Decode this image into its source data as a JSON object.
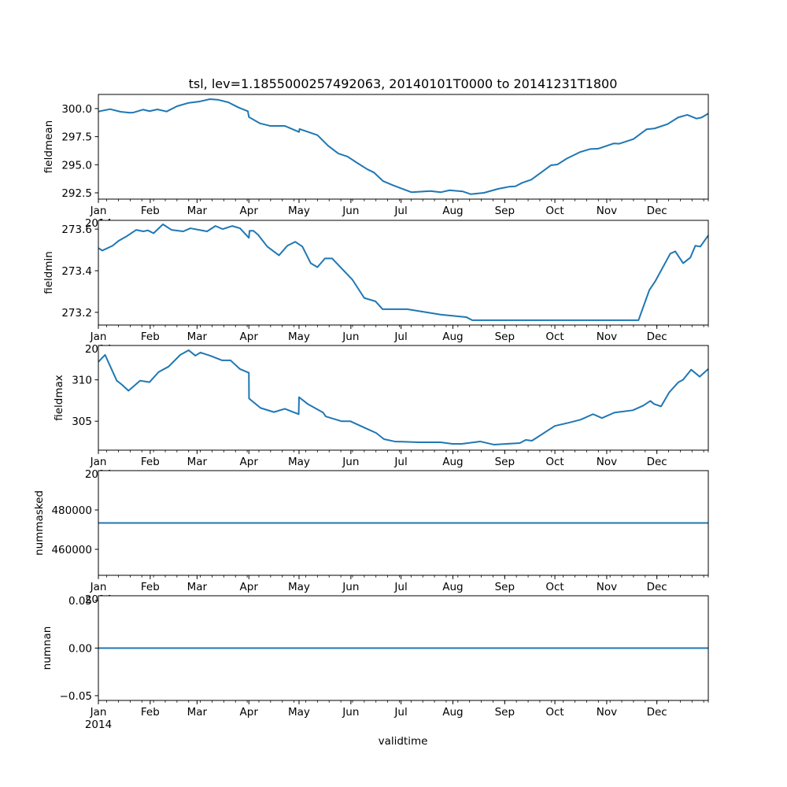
{
  "chart_data": {
    "type": "line",
    "title": "tsl, lev=1.1855000257492063, 20140101T0000 to 20141231T1800",
    "xlabel": "validtime",
    "x_units": "day of year 2014 (0 = Jan 1)",
    "xlim": [
      0,
      364.75
    ],
    "x_tick_days": [
      0,
      31,
      59,
      90,
      120,
      151,
      181,
      212,
      243,
      273,
      304,
      334
    ],
    "x_tick_labels": [
      "Jan",
      "Feb",
      "Mar",
      "Apr",
      "May",
      "Jun",
      "Jul",
      "Aug",
      "Sep",
      "Oct",
      "Nov",
      "Dec"
    ],
    "x_year_label": "2014",
    "line_color": "#1f77b4",
    "panels": [
      {
        "ylabel": "fieldmean",
        "ylim": [
          291.94,
          301.26
        ],
        "yticks": [
          292.5,
          295.0,
          297.5,
          300.0
        ],
        "ytick_labels": [
          "292.5",
          "295.0",
          "297.5",
          "300.0"
        ],
        "points": [
          [
            0,
            299.74
          ],
          [
            7,
            299.95
          ],
          [
            13.3,
            299.72
          ],
          [
            18.8,
            299.63
          ],
          [
            21,
            299.65
          ],
          [
            26.7,
            299.91
          ],
          [
            30.6,
            299.77
          ],
          [
            35.3,
            299.93
          ],
          [
            40.8,
            299.74
          ],
          [
            47,
            300.21
          ],
          [
            54,
            300.51
          ],
          [
            60.4,
            300.63
          ],
          [
            66.7,
            300.84
          ],
          [
            71.4,
            300.79
          ],
          [
            77.7,
            300.56
          ],
          [
            83.9,
            300.09
          ],
          [
            89.4,
            299.77
          ],
          [
            90,
            299.25
          ],
          [
            96.5,
            298.69
          ],
          [
            102.7,
            298.46
          ],
          [
            111.4,
            298.46
          ],
          [
            120,
            297.92
          ],
          [
            120.3,
            298.18
          ],
          [
            131,
            297.64
          ],
          [
            137.3,
            296.7
          ],
          [
            143.5,
            296.0
          ],
          [
            149,
            295.73
          ],
          [
            154.5,
            295.19
          ],
          [
            160.8,
            294.6
          ],
          [
            164.7,
            294.32
          ],
          [
            170.2,
            293.55
          ],
          [
            176.5,
            293.15
          ],
          [
            187.3,
            292.55
          ],
          [
            198.5,
            292.66
          ],
          [
            204.7,
            292.55
          ],
          [
            210,
            292.73
          ],
          [
            218,
            292.62
          ],
          [
            222.6,
            292.38
          ],
          [
            230.6,
            292.5
          ],
          [
            239,
            292.85
          ],
          [
            245.5,
            293.04
          ],
          [
            249.4,
            293.08
          ],
          [
            253.4,
            293.39
          ],
          [
            258.9,
            293.67
          ],
          [
            270.6,
            294.95
          ],
          [
            274.5,
            295.02
          ],
          [
            280,
            295.54
          ],
          [
            287.9,
            296.12
          ],
          [
            294.2,
            296.4
          ],
          [
            298.9,
            296.43
          ],
          [
            308.3,
            296.9
          ],
          [
            311.4,
            296.87
          ],
          [
            320,
            297.29
          ],
          [
            327.9,
            298.16
          ],
          [
            332.6,
            298.23
          ],
          [
            340.4,
            298.62
          ],
          [
            346.7,
            299.21
          ],
          [
            352.2,
            299.44
          ],
          [
            357.7,
            299.11
          ],
          [
            360.8,
            299.21
          ],
          [
            364.75,
            299.56
          ]
        ]
      },
      {
        "ylabel": "fieldmin",
        "ylim": [
          273.139,
          273.642
        ],
        "yticks": [
          273.2,
          273.4,
          273.6
        ],
        "ytick_labels": [
          "273.2",
          "273.4",
          "273.6"
        ],
        "points": [
          [
            0,
            273.509
          ],
          [
            2.4,
            273.497
          ],
          [
            8.5,
            273.52
          ],
          [
            12,
            273.543
          ],
          [
            17,
            273.566
          ],
          [
            22.6,
            273.596
          ],
          [
            27,
            273.589
          ],
          [
            29.6,
            273.594
          ],
          [
            33,
            273.58
          ],
          [
            38.6,
            273.623
          ],
          [
            43.8,
            273.596
          ],
          [
            50.8,
            273.589
          ],
          [
            55,
            273.604
          ],
          [
            65,
            273.589
          ],
          [
            70,
            273.615
          ],
          [
            74.4,
            273.6
          ],
          [
            80,
            273.615
          ],
          [
            84.7,
            273.604
          ],
          [
            90,
            273.558
          ],
          [
            90.4,
            273.592
          ],
          [
            92.7,
            273.592
          ],
          [
            95.5,
            273.573
          ],
          [
            101,
            273.516
          ],
          [
            108,
            273.474
          ],
          [
            113,
            273.52
          ],
          [
            117.7,
            273.539
          ],
          [
            122,
            273.516
          ],
          [
            127,
            273.436
          ],
          [
            131,
            273.417
          ],
          [
            135.5,
            273.459
          ],
          [
            139.8,
            273.459
          ],
          [
            152,
            273.356
          ],
          [
            159,
            273.269
          ],
          [
            165.7,
            273.253
          ],
          [
            170,
            273.215
          ],
          [
            184.7,
            273.215
          ],
          [
            204.7,
            273.189
          ],
          [
            220,
            273.177
          ],
          [
            223.6,
            273.162
          ],
          [
            323,
            273.162
          ],
          [
            329.5,
            273.307
          ],
          [
            333,
            273.349
          ],
          [
            342,
            273.482
          ],
          [
            345,
            273.493
          ],
          [
            349.7,
            273.436
          ],
          [
            354,
            273.463
          ],
          [
            357,
            273.52
          ],
          [
            360,
            273.516
          ],
          [
            364.75,
            273.57
          ]
        ]
      },
      {
        "ylabel": "fieldmax",
        "ylim": [
          301.5,
          314.15
        ],
        "yticks": [
          305,
          310
        ],
        "ytick_labels": [
          "305",
          "310"
        ],
        "points": [
          [
            0,
            312.17
          ],
          [
            4,
            313.02
          ],
          [
            11,
            309.9
          ],
          [
            14,
            309.43
          ],
          [
            18,
            308.68
          ],
          [
            25,
            309.9
          ],
          [
            30.6,
            309.72
          ],
          [
            36,
            310.94
          ],
          [
            42,
            311.6
          ],
          [
            49,
            313.02
          ],
          [
            54,
            313.58
          ],
          [
            58,
            312.92
          ],
          [
            61,
            313.3
          ],
          [
            66.8,
            312.92
          ],
          [
            73.9,
            312.36
          ],
          [
            79,
            312.36
          ],
          [
            84.7,
            311.3
          ],
          [
            90,
            310.85
          ],
          [
            90.1,
            307.74
          ],
          [
            97,
            306.6
          ],
          [
            105,
            306.1
          ],
          [
            111.5,
            306.5
          ],
          [
            119.8,
            305.85
          ],
          [
            120,
            307.9
          ],
          [
            125.2,
            307.08
          ],
          [
            134.4,
            306.04
          ],
          [
            136,
            305.57
          ],
          [
            145.3,
            305.0
          ],
          [
            150.6,
            305.0
          ],
          [
            160.8,
            304.06
          ],
          [
            166.1,
            303.58
          ],
          [
            170.8,
            302.83
          ],
          [
            177.2,
            302.55
          ],
          [
            191.8,
            302.45
          ],
          [
            204.6,
            302.45
          ],
          [
            211.8,
            302.26
          ],
          [
            217.3,
            302.26
          ],
          [
            228.3,
            302.55
          ],
          [
            236.5,
            302.17
          ],
          [
            252,
            302.36
          ],
          [
            255.6,
            302.74
          ],
          [
            259.3,
            302.64
          ],
          [
            273,
            304.43
          ],
          [
            281.2,
            304.81
          ],
          [
            288.5,
            305.19
          ],
          [
            295.8,
            305.85
          ],
          [
            301.2,
            305.38
          ],
          [
            308.6,
            306.04
          ],
          [
            319.6,
            306.32
          ],
          [
            325.9,
            306.89
          ],
          [
            330.1,
            307.45
          ],
          [
            332.3,
            307.08
          ],
          [
            336.5,
            306.79
          ],
          [
            341.4,
            308.49
          ],
          [
            346.9,
            309.72
          ],
          [
            349.6,
            310.0
          ],
          [
            354.5,
            311.23
          ],
          [
            359.6,
            310.38
          ],
          [
            364.75,
            311.32
          ]
        ]
      },
      {
        "ylabel": "nummasked",
        "ylim": [
          446800,
          500000
        ],
        "yticks": [
          460000,
          480000
        ],
        "ytick_labels": [
          "460000",
          "480000"
        ],
        "points": [
          [
            0,
            473400
          ],
          [
            364.75,
            473400
          ]
        ]
      },
      {
        "ylabel": "numnan",
        "ylim": [
          -0.055,
          0.055
        ],
        "yticks": [
          -0.05,
          0.0,
          0.05
        ],
        "ytick_labels": [
          "−0.05",
          "0.00",
          "0.05"
        ],
        "points": [
          [
            0,
            0
          ],
          [
            364.75,
            0
          ]
        ]
      }
    ]
  }
}
